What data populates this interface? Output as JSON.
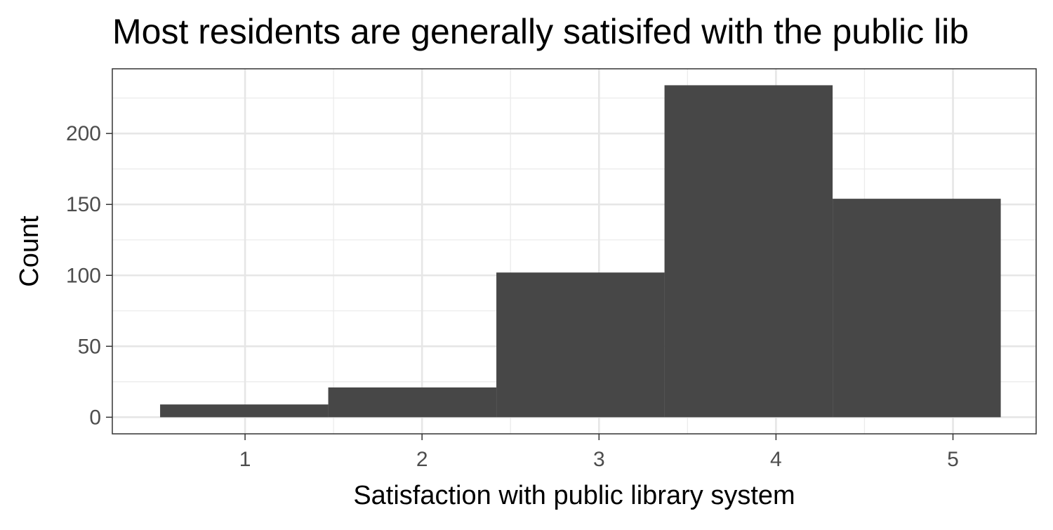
{
  "chart_data": {
    "type": "bar",
    "subtype": "histogram",
    "title": "Most residents are generally satisifed with the public lib",
    "xlabel": "Satisfaction with public library system",
    "ylabel": "Count",
    "x_ticks": [
      "1",
      "2",
      "3",
      "4",
      "5"
    ],
    "y_ticks": [
      "0",
      "50",
      "100",
      "150",
      "200"
    ],
    "xlim": [
      0.25,
      5.47
    ],
    "ylim": [
      -11.7,
      245.6
    ],
    "bins": [
      {
        "start": 0.52,
        "end": 1.47,
        "value": 9
      },
      {
        "start": 1.47,
        "end": 2.42,
        "value": 21
      },
      {
        "start": 2.42,
        "end": 3.37,
        "value": 102
      },
      {
        "start": 3.37,
        "end": 4.32,
        "value": 234
      },
      {
        "start": 4.32,
        "end": 5.27,
        "value": 154
      }
    ],
    "bar_color": "#474747",
    "grid": true,
    "theme": "bw",
    "legend": "none"
  }
}
